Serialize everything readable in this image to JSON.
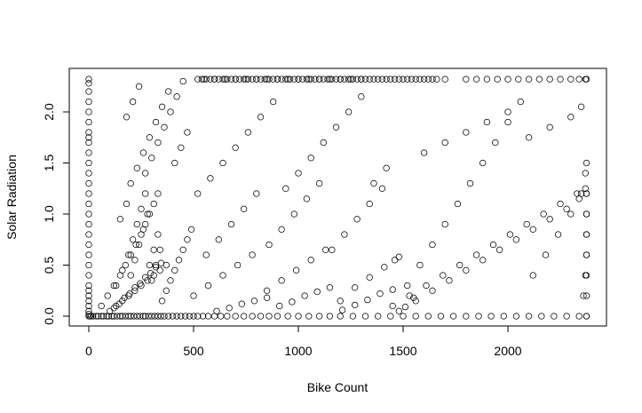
{
  "chart_data": {
    "type": "scatter",
    "title": "",
    "xlabel": "Bike Count",
    "ylabel": "Solar Radiation",
    "xlim": [
      0,
      2375
    ],
    "ylim": [
      0,
      2.32
    ],
    "x_ticks": [
      0,
      500,
      1000,
      1500,
      2000
    ],
    "x_tick_labels": [
      "0",
      "500",
      "1000",
      "1500",
      "2000"
    ],
    "y_ticks": [
      0.0,
      0.5,
      1.0,
      1.5,
      2.0
    ],
    "y_tick_labels": [
      "0.0",
      "0.5",
      "1.0",
      "1.5",
      "2.0"
    ],
    "grid": false,
    "legend": "none",
    "marker": "open-circle",
    "marker_color": "#000000",
    "series": [
      {
        "x": [
          0,
          0,
          0,
          0,
          0,
          0,
          0,
          0,
          0,
          0,
          0,
          0,
          0,
          0,
          0,
          0,
          0,
          0,
          0,
          0,
          0,
          0,
          0,
          0,
          0,
          0,
          0,
          0,
          0,
          0,
          5,
          12,
          20,
          35,
          45,
          60,
          70,
          85,
          95,
          110,
          120,
          135,
          150,
          160,
          175,
          190,
          200,
          215,
          230,
          245,
          260,
          270,
          285,
          300,
          315,
          330,
          345,
          360,
          380,
          400,
          420,
          440,
          460,
          480,
          500,
          520,
          545,
          570,
          600,
          630,
          660,
          700,
          740,
          780,
          820,
          860,
          900,
          950,
          1000,
          1050,
          1100,
          1150,
          1200,
          1260,
          1320,
          1380,
          1440,
          1500,
          1560,
          1620,
          1680,
          1740,
          1800,
          1860,
          1920,
          1980,
          2040,
          2100,
          2160,
          2220,
          2280,
          2340,
          2375,
          2375,
          2375,
          2375,
          2375,
          2375,
          2375,
          2375,
          60,
          90,
          120,
          150,
          175,
          200,
          225,
          250,
          270,
          290,
          310,
          330,
          350,
          370,
          390,
          410,
          430,
          450,
          470,
          490,
          130,
          160,
          190,
          210,
          230,
          250,
          270,
          290,
          310,
          330,
          150,
          180,
          200,
          220,
          240,
          260,
          280,
          300,
          320,
          340,
          100,
          130,
          160,
          190,
          220,
          250,
          280,
          310,
          340,
          370,
          120,
          145,
          170,
          195,
          220,
          245,
          270,
          295,
          320,
          345,
          200,
          230,
          260,
          290,
          320,
          350,
          380,
          410,
          440,
          470,
          180,
          210,
          240,
          270,
          300,
          330,
          360,
          390,
          420,
          450,
          550,
          600,
          650,
          700,
          750,
          800,
          850,
          900,
          950,
          1000,
          1050,
          1100,
          1150,
          1200,
          1250,
          1300,
          520,
          580,
          640,
          700,
          760,
          820,
          880,
          940,
          1000,
          1060,
          1120,
          1180,
          1240,
          1300,
          1360,
          1420,
          560,
          620,
          680,
          740,
          800,
          860,
          920,
          980,
          1040,
          1100,
          1160,
          1220,
          1280,
          1340,
          1400,
          1460,
          500,
          570,
          640,
          710,
          780,
          850,
          920,
          990,
          1060,
          1130,
          1200,
          1270,
          1340,
          1410,
          1480,
          1550,
          610,
          670,
          730,
          790,
          850,
          910,
          970,
          1030,
          1090,
          1150,
          1210,
          1270,
          1330,
          1390,
          1450,
          1510,
          1520,
          1580,
          1640,
          1700,
          1760,
          1820,
          1880,
          1940,
          2000,
          2060,
          2120,
          2180,
          2240,
          2300,
          2350,
          2370,
          1450,
          1530,
          1610,
          1690,
          1770,
          1850,
          1930,
          2010,
          2090,
          2170,
          2250,
          2330,
          2360,
          2370,
          2375,
          2375,
          1480,
          1560,
          1640,
          1720,
          1800,
          1880,
          1960,
          2040,
          2120,
          2200,
          2280,
          2340,
          2370,
          2375,
          2375,
          2375,
          1600,
          1700,
          1800,
          1900,
          2000,
          2100,
          2200,
          2300,
          2350,
          2375,
          700,
          720,
          740,
          760,
          780,
          800,
          820,
          840,
          860,
          880,
          900,
          920,
          940,
          960,
          980,
          1000,
          1020,
          1040,
          1060,
          1080,
          1100,
          1120,
          1140,
          1160,
          1180,
          1200,
          1220,
          1240,
          1260,
          1280,
          1300,
          1320,
          520,
          540,
          560,
          580,
          600,
          620,
          640,
          660,
          680,
          1340,
          1360,
          1380,
          1400,
          1420,
          1440,
          1460,
          1480,
          1500,
          1520,
          1540,
          1560,
          1580,
          1600,
          1620,
          1640,
          1660,
          1700,
          1800,
          1850,
          1900,
          1950,
          2000,
          2050,
          2100,
          2150,
          2200,
          2250,
          2300,
          2340,
          2370
        ],
        "y": [
          0.0,
          0.02,
          0.05,
          0.1,
          0.15,
          0.2,
          0.25,
          0.3,
          0.4,
          0.5,
          0.6,
          0.7,
          0.8,
          0.9,
          1.0,
          1.1,
          1.2,
          1.3,
          1.4,
          1.5,
          1.6,
          1.7,
          1.75,
          1.8,
          1.9,
          2.0,
          2.1,
          2.2,
          2.28,
          2.32,
          0.0,
          0.0,
          0.0,
          0.0,
          0.0,
          0.0,
          0.0,
          0.0,
          0.0,
          0.0,
          0.0,
          0.0,
          0.0,
          0.0,
          0.0,
          0.0,
          0.0,
          0.0,
          0.0,
          0.0,
          0.0,
          0.0,
          0.0,
          0.0,
          0.0,
          0.0,
          0.0,
          0.0,
          0.0,
          0.0,
          0.0,
          0.0,
          0.0,
          0.0,
          0.0,
          0.0,
          0.0,
          0.0,
          0.0,
          0.0,
          0.0,
          0.0,
          0.0,
          0.0,
          0.0,
          0.0,
          0.0,
          0.0,
          0.0,
          0.0,
          0.0,
          0.0,
          0.0,
          0.0,
          0.0,
          0.0,
          0.0,
          0.0,
          0.0,
          0.0,
          0.0,
          0.0,
          0.0,
          0.0,
          0.0,
          0.0,
          0.0,
          0.0,
          0.0,
          0.0,
          0.0,
          0.0,
          0.0,
          0.2,
          0.4,
          0.6,
          0.8,
          1.0,
          1.2,
          1.5,
          0.1,
          0.2,
          0.3,
          0.4,
          0.5,
          0.6,
          0.7,
          0.8,
          0.9,
          1.0,
          1.1,
          1.2,
          0.15,
          0.25,
          0.35,
          0.45,
          0.55,
          0.65,
          0.75,
          0.85,
          0.3,
          0.45,
          0.6,
          0.75,
          0.9,
          1.05,
          1.2,
          0.5,
          0.65,
          0.8,
          0.95,
          1.1,
          0.4,
          0.55,
          0.7,
          0.85,
          1.0,
          0.35,
          0.5,
          0.65,
          0.05,
          0.1,
          0.15,
          0.2,
          0.25,
          0.3,
          0.35,
          0.4,
          0.45,
          0.5,
          0.08,
          0.12,
          0.18,
          0.22,
          0.28,
          0.32,
          0.38,
          0.42,
          0.48,
          0.52,
          1.3,
          1.45,
          1.6,
          1.75,
          1.9,
          2.05,
          2.2,
          1.5,
          1.65,
          1.8,
          1.95,
          2.1,
          2.25,
          1.4,
          1.55,
          1.7,
          1.85,
          2.0,
          2.15,
          2.3,
          2.32,
          2.32,
          2.32,
          2.32,
          2.32,
          2.32,
          2.32,
          2.32,
          2.32,
          2.32,
          2.32,
          2.32,
          2.32,
          2.32,
          2.32,
          2.32,
          1.2,
          1.35,
          1.5,
          1.65,
          1.8,
          1.95,
          2.1,
          1.25,
          1.4,
          1.55,
          1.7,
          1.85,
          2.0,
          2.15,
          1.3,
          1.45,
          0.6,
          0.75,
          0.9,
          1.05,
          1.2,
          0.7,
          0.85,
          1.0,
          1.15,
          1.3,
          0.65,
          0.8,
          0.95,
          1.1,
          1.25,
          0.55,
          0.2,
          0.3,
          0.4,
          0.5,
          0.6,
          0.25,
          0.35,
          0.45,
          0.55,
          0.65,
          0.15,
          0.28,
          0.38,
          0.48,
          0.58,
          0.18,
          0.05,
          0.08,
          0.12,
          0.15,
          0.18,
          0.1,
          0.14,
          0.2,
          0.24,
          0.28,
          0.06,
          0.11,
          0.16,
          0.22,
          0.26,
          0.09,
          0.3,
          0.5,
          0.7,
          0.9,
          1.1,
          1.3,
          1.5,
          1.7,
          1.9,
          2.1,
          0.4,
          0.6,
          0.8,
          1.0,
          1.2,
          1.4,
          0.1,
          0.2,
          0.3,
          0.4,
          0.5,
          0.6,
          0.7,
          0.8,
          0.9,
          1.0,
          1.1,
          1.2,
          0.2,
          0.4,
          0.6,
          0.8,
          0.05,
          0.15,
          0.25,
          0.35,
          0.45,
          0.55,
          0.65,
          0.75,
          0.85,
          0.95,
          1.05,
          1.15,
          1.25,
          1.0,
          1.2,
          0.0,
          1.6,
          1.7,
          1.8,
          1.9,
          2.0,
          1.75,
          1.85,
          1.95,
          2.05,
          2.32,
          2.32,
          2.32,
          2.32,
          2.32,
          2.32,
          2.32,
          2.32,
          2.32,
          2.32,
          2.32,
          2.32,
          2.32,
          2.32,
          2.32,
          2.32,
          2.32,
          2.32,
          2.32,
          2.32,
          2.32,
          2.32,
          2.32,
          2.32,
          2.32,
          2.32,
          2.32,
          2.32,
          2.32,
          2.32,
          2.32,
          2.32,
          2.32,
          2.32,
          2.32,
          2.32,
          2.32,
          2.32,
          2.32,
          2.32,
          2.32,
          2.32,
          2.32,
          2.32,
          2.32,
          2.32,
          2.32,
          2.32,
          2.32,
          2.32,
          2.32,
          2.32,
          2.32,
          2.32,
          2.32,
          2.32,
          2.32,
          2.32,
          2.32,
          2.32,
          2.32,
          2.32,
          2.32,
          2.32,
          2.32,
          2.32,
          2.32,
          2.32,
          2.32,
          2.32,
          2.32,
          2.32,
          2.32
        ]
      }
    ]
  }
}
